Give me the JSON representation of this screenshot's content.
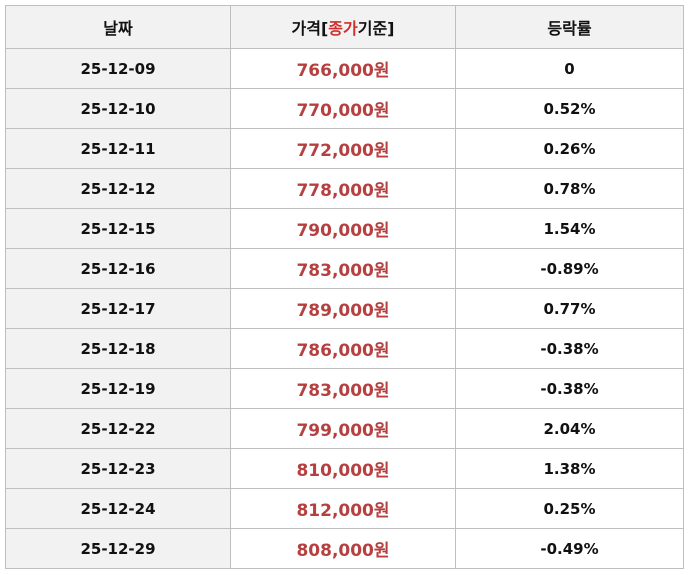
{
  "table": {
    "header": [
      "날짜",
      [
        "가격[",
        "종가",
        "기준]"
      ],
      "등락률"
    ],
    "rows": [
      [
        "25-12-09",
        "766,000원",
        "0"
      ],
      [
        "25-12-10",
        "770,000원",
        "0.52%"
      ],
      [
        "25-12-11",
        "772,000원",
        "0.26%"
      ],
      [
        "25-12-12",
        "778,000원",
        "0.78%"
      ],
      [
        "25-12-15",
        "790,000원",
        "1.54%"
      ],
      [
        "25-12-16",
        "783,000원",
        "-0.89%"
      ],
      [
        "25-12-17",
        "789,000원",
        "0.77%"
      ],
      [
        "25-12-18",
        "786,000원",
        "-0.38%"
      ],
      [
        "25-12-19",
        "783,000원",
        "-0.38%"
      ],
      [
        "25-12-22",
        "799,000원",
        "2.04%"
      ],
      [
        "25-12-23",
        "810,000원",
        "1.38%"
      ],
      [
        "25-12-24",
        "812,000원",
        "0.25%"
      ],
      [
        "25-12-29",
        "808,000원",
        "-0.49%"
      ]
    ]
  }
}
